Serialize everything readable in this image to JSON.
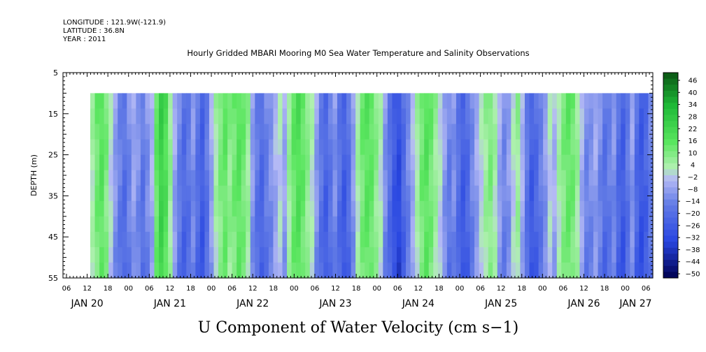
{
  "header": {
    "longitude": "LONGITUDE : 121.9W(-121.9)",
    "latitude": "LATITUDE : 36.8N",
    "year": "YEAR : 2011"
  },
  "chart_data": {
    "type": "heatmap",
    "title": "Hourly Gridded MBARI Mooring M0 Sea Water Temperature and Salinity Observations",
    "xlabel": "U Component of Water Velocity (cm s−1)",
    "ylabel": "DEPTH (m)",
    "x_hours": [
      "06",
      "12",
      "18",
      "00",
      "06",
      "12",
      "18",
      "00",
      "06",
      "12",
      "18",
      "00",
      "06",
      "12",
      "18",
      "00",
      "06",
      "12",
      "18",
      "00",
      "06",
      "12",
      "18",
      "00",
      "06",
      "12",
      "18",
      "00",
      "06"
    ],
    "x_days": [
      "JAN 20",
      "JAN 21",
      "JAN 22",
      "JAN 23",
      "JAN 24",
      "JAN 25",
      "JAN 26",
      "JAN 27"
    ],
    "y_ticks": [
      "5",
      "15",
      "25",
      "35",
      "45",
      "55"
    ],
    "ylim": [
      5,
      55
    ],
    "data_depth_range": [
      10,
      55
    ],
    "colorbar": {
      "labels": [
        "46",
        "40",
        "34",
        "28",
        "22",
        "16",
        "10",
        "4",
        "−2",
        "−8",
        "−14",
        "−20",
        "−26",
        "−32",
        "−38",
        "−44",
        "−50"
      ],
      "min": -50,
      "max": 50
    },
    "band_values": [
      6,
      14,
      18,
      12,
      2,
      -6,
      -12,
      -16,
      -10,
      -4,
      -8,
      -14,
      -8,
      -2,
      16,
      26,
      20,
      8,
      -4,
      -12,
      -18,
      -14,
      -8,
      -16,
      -22,
      -14,
      -4,
      6,
      12,
      16,
      10,
      14,
      18,
      14,
      8,
      -6,
      -14,
      -18,
      -12,
      -8,
      -2,
      2,
      -4,
      8,
      16,
      20,
      16,
      10,
      4,
      -6,
      -14,
      -20,
      -14,
      -8,
      -16,
      -22,
      -16,
      -6,
      6,
      14,
      18,
      16,
      10,
      4,
      -8,
      -16,
      -24,
      -28,
      -18,
      -10,
      -2,
      6,
      14,
      18,
      14,
      8,
      2,
      -6,
      -12,
      -8,
      -16,
      -22,
      -18,
      -10,
      -4,
      2,
      8,
      12,
      6,
      -4,
      -10,
      -6,
      2,
      8,
      -2,
      -14,
      -22,
      -18,
      -12,
      -6,
      2,
      -2,
      6,
      12,
      16,
      14,
      8,
      -2,
      -10,
      -8,
      -4,
      -10,
      -16,
      -12,
      -8,
      -18,
      -22,
      -14,
      -6,
      -18,
      -24,
      -20,
      -12
    ]
  }
}
